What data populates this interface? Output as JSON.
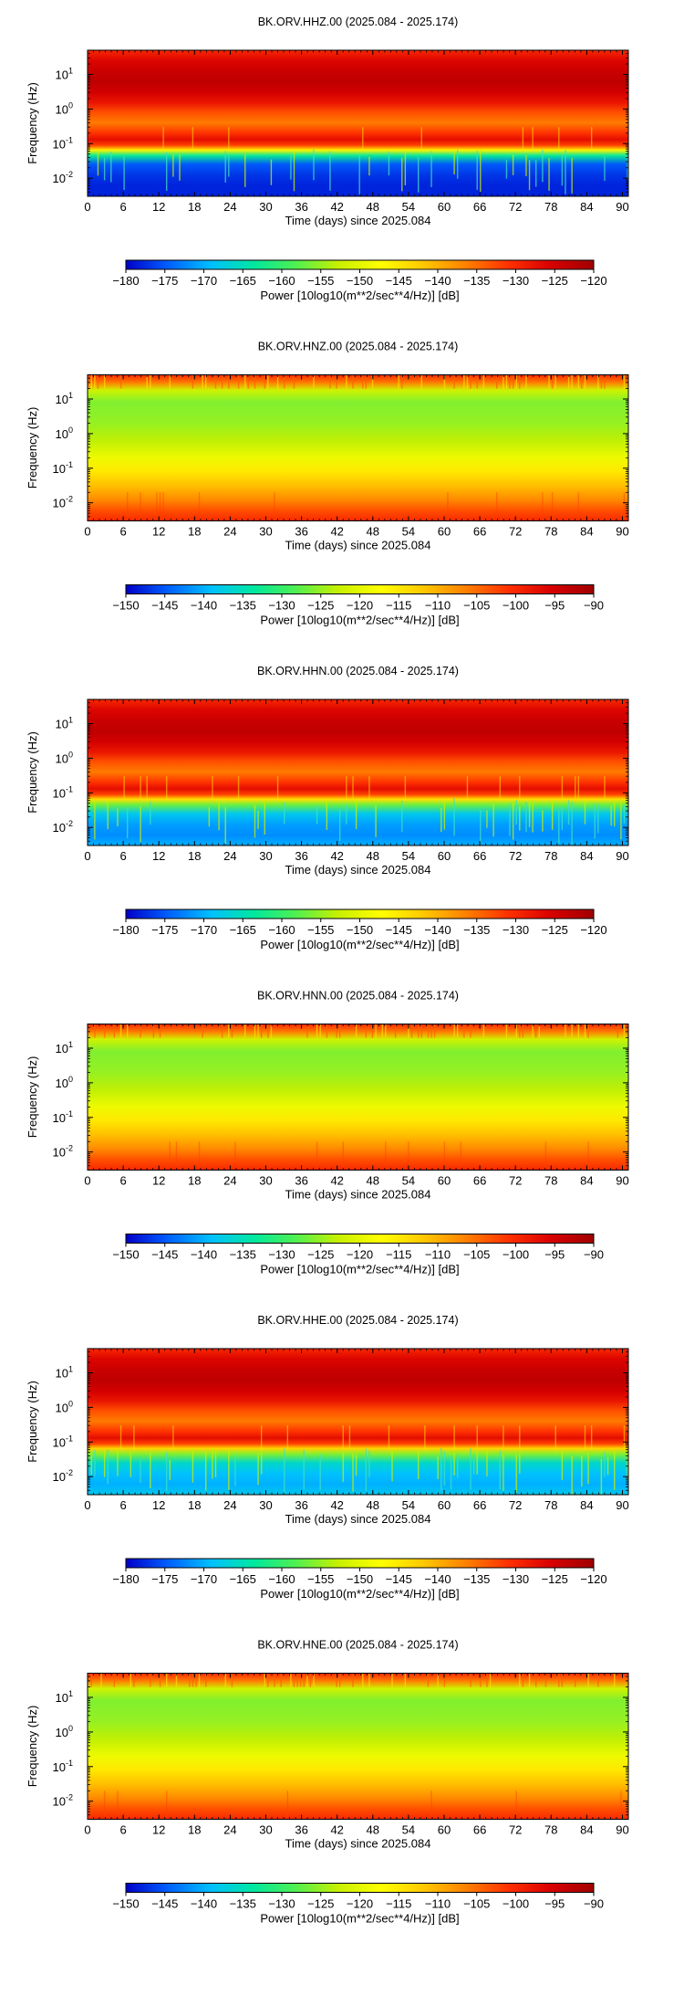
{
  "chart_data": [
    {
      "type": "heatmap",
      "title": "BK.ORV.HHZ.00 (2025.084 - 2025.174)",
      "xlabel": "Time (days) since 2025.084",
      "ylabel": "Frequency (Hz)",
      "x_ticks": [
        "0",
        "6",
        "12",
        "18",
        "24",
        "30",
        "36",
        "42",
        "48",
        "54",
        "60",
        "66",
        "72",
        "78",
        "84",
        "90"
      ],
      "xlim": [
        0,
        91
      ],
      "y_scale": "log",
      "y_ticks": [
        {
          "base": "10",
          "exp": "1"
        },
        {
          "base": "10",
          "exp": "0"
        },
        {
          "base": "10",
          "exp": "-1"
        },
        {
          "base": "10",
          "exp": "-2"
        }
      ],
      "ylim": [
        0.003,
        50
      ],
      "colorbar": {
        "label": "Power [10log10(m**2/sec**4/Hz)] [dB]",
        "range": [
          -180,
          -120
        ],
        "ticks": [
          "−180",
          "−175",
          "−170",
          "−165",
          "−160",
          "−155",
          "−150",
          "−145",
          "−140",
          "−135",
          "−130",
          "−125",
          "−120"
        ]
      },
      "colormap": [
        "#0000c8",
        "#0060ff",
        "#00c0ff",
        "#00e8a0",
        "#50f050",
        "#c8f000",
        "#ffff00",
        "#ffc800",
        "#ff8000",
        "#ff3000",
        "#d80000",
        "#a00000"
      ],
      "bands": [
        {
          "freq": 0.003,
          "value": -178
        },
        {
          "freq": 0.006,
          "value": -178
        },
        {
          "freq": 0.012,
          "value": -177
        },
        {
          "freq": 0.025,
          "value": -175
        },
        {
          "freq": 0.045,
          "value": -163
        },
        {
          "freq": 0.065,
          "value": -146
        },
        {
          "freq": 0.09,
          "value": -132
        },
        {
          "freq": 0.13,
          "value": -127
        },
        {
          "freq": 0.2,
          "value": -131
        },
        {
          "freq": 0.4,
          "value": -136
        },
        {
          "freq": 0.8,
          "value": -133
        },
        {
          "freq": 1.5,
          "value": -128
        },
        {
          "freq": 3,
          "value": -125
        },
        {
          "freq": 6,
          "value": -123
        },
        {
          "freq": 12,
          "value": -124
        },
        {
          "freq": 25,
          "value": -126
        },
        {
          "freq": 50,
          "value": -130
        }
      ]
    },
    {
      "type": "heatmap",
      "title": "BK.ORV.HNZ.00 (2025.084 - 2025.174)",
      "xlabel": "Time (days) since 2025.084",
      "ylabel": "Frequency (Hz)",
      "x_ticks": [
        "0",
        "6",
        "12",
        "18",
        "24",
        "30",
        "36",
        "42",
        "48",
        "54",
        "60",
        "66",
        "72",
        "78",
        "84",
        "90"
      ],
      "xlim": [
        0,
        91
      ],
      "y_scale": "log",
      "y_ticks": [
        {
          "base": "10",
          "exp": "1"
        },
        {
          "base": "10",
          "exp": "0"
        },
        {
          "base": "10",
          "exp": "-1"
        },
        {
          "base": "10",
          "exp": "-2"
        }
      ],
      "ylim": [
        0.003,
        50
      ],
      "colorbar": {
        "label": "Power [10log10(m**2/sec**4/Hz)] [dB]",
        "range": [
          -150,
          -90
        ],
        "ticks": [
          "−150",
          "−145",
          "−140",
          "−135",
          "−130",
          "−125",
          "−120",
          "−115",
          "−110",
          "−105",
          "−100",
          "−95",
          "−90"
        ]
      },
      "colormap": [
        "#0000c8",
        "#0060ff",
        "#00c0ff",
        "#00e8a0",
        "#50f050",
        "#c8f000",
        "#ffff00",
        "#ffc800",
        "#ff8000",
        "#ff3000",
        "#d80000",
        "#a00000"
      ],
      "bands": [
        {
          "freq": 0.003,
          "value": -100
        },
        {
          "freq": 0.006,
          "value": -103
        },
        {
          "freq": 0.012,
          "value": -107
        },
        {
          "freq": 0.03,
          "value": -111
        },
        {
          "freq": 0.08,
          "value": -115
        },
        {
          "freq": 0.2,
          "value": -119
        },
        {
          "freq": 0.6,
          "value": -123
        },
        {
          "freq": 2,
          "value": -125
        },
        {
          "freq": 8,
          "value": -126
        },
        {
          "freq": 18,
          "value": -122
        },
        {
          "freq": 30,
          "value": -106
        },
        {
          "freq": 50,
          "value": -100
        }
      ]
    },
    {
      "type": "heatmap",
      "title": "BK.ORV.HHN.00 (2025.084 - 2025.174)",
      "xlabel": "Time (days) since 2025.084",
      "ylabel": "Frequency (Hz)",
      "x_ticks": [
        "0",
        "6",
        "12",
        "18",
        "24",
        "30",
        "36",
        "42",
        "48",
        "54",
        "60",
        "66",
        "72",
        "78",
        "84",
        "90"
      ],
      "xlim": [
        0,
        91
      ],
      "y_scale": "log",
      "y_ticks": [
        {
          "base": "10",
          "exp": "1"
        },
        {
          "base": "10",
          "exp": "0"
        },
        {
          "base": "10",
          "exp": "-1"
        },
        {
          "base": "10",
          "exp": "-2"
        }
      ],
      "ylim": [
        0.003,
        50
      ],
      "colorbar": {
        "label": "Power [10log10(m**2/sec**4/Hz)] [dB]",
        "range": [
          -180,
          -120
        ],
        "ticks": [
          "−180",
          "−175",
          "−170",
          "−165",
          "−160",
          "−155",
          "−150",
          "−145",
          "−140",
          "−135",
          "−130",
          "−125",
          "−120"
        ]
      },
      "colormap": [
        "#0000c8",
        "#0060ff",
        "#00c0ff",
        "#00e8a0",
        "#50f050",
        "#c8f000",
        "#ffff00",
        "#ffc800",
        "#ff8000",
        "#ff3000",
        "#d80000",
        "#a00000"
      ],
      "bands": [
        {
          "freq": 0.003,
          "value": -170
        },
        {
          "freq": 0.006,
          "value": -172
        },
        {
          "freq": 0.012,
          "value": -171
        },
        {
          "freq": 0.025,
          "value": -168
        },
        {
          "freq": 0.045,
          "value": -157
        },
        {
          "freq": 0.065,
          "value": -144
        },
        {
          "freq": 0.09,
          "value": -132
        },
        {
          "freq": 0.13,
          "value": -127
        },
        {
          "freq": 0.2,
          "value": -131
        },
        {
          "freq": 0.4,
          "value": -136
        },
        {
          "freq": 0.8,
          "value": -133
        },
        {
          "freq": 1.5,
          "value": -128
        },
        {
          "freq": 3,
          "value": -125
        },
        {
          "freq": 6,
          "value": -123
        },
        {
          "freq": 12,
          "value": -124
        },
        {
          "freq": 25,
          "value": -126
        },
        {
          "freq": 50,
          "value": -130
        }
      ]
    },
    {
      "type": "heatmap",
      "title": "BK.ORV.HNN.00 (2025.084 - 2025.174)",
      "xlabel": "Time (days) since 2025.084",
      "ylabel": "Frequency (Hz)",
      "x_ticks": [
        "0",
        "6",
        "12",
        "18",
        "24",
        "30",
        "36",
        "42",
        "48",
        "54",
        "60",
        "66",
        "72",
        "78",
        "84",
        "90"
      ],
      "xlim": [
        0,
        91
      ],
      "y_scale": "log",
      "y_ticks": [
        {
          "base": "10",
          "exp": "1"
        },
        {
          "base": "10",
          "exp": "0"
        },
        {
          "base": "10",
          "exp": "-1"
        },
        {
          "base": "10",
          "exp": "-2"
        }
      ],
      "ylim": [
        0.003,
        50
      ],
      "colorbar": {
        "label": "Power [10log10(m**2/sec**4/Hz)] [dB]",
        "range": [
          -150,
          -90
        ],
        "ticks": [
          "−150",
          "−145",
          "−140",
          "−135",
          "−130",
          "−125",
          "−120",
          "−115",
          "−110",
          "−105",
          "−100",
          "−95",
          "−90"
        ]
      },
      "colormap": [
        "#0000c8",
        "#0060ff",
        "#00c0ff",
        "#00e8a0",
        "#50f050",
        "#c8f000",
        "#ffff00",
        "#ffc800",
        "#ff8000",
        "#ff3000",
        "#d80000",
        "#a00000"
      ],
      "bands": [
        {
          "freq": 0.003,
          "value": -100
        },
        {
          "freq": 0.006,
          "value": -103
        },
        {
          "freq": 0.012,
          "value": -107
        },
        {
          "freq": 0.03,
          "value": -111
        },
        {
          "freq": 0.08,
          "value": -115
        },
        {
          "freq": 0.2,
          "value": -119
        },
        {
          "freq": 0.6,
          "value": -123
        },
        {
          "freq": 2,
          "value": -125
        },
        {
          "freq": 8,
          "value": -126
        },
        {
          "freq": 18,
          "value": -122
        },
        {
          "freq": 30,
          "value": -106
        },
        {
          "freq": 50,
          "value": -100
        }
      ]
    },
    {
      "type": "heatmap",
      "title": "BK.ORV.HHE.00 (2025.084 - 2025.174)",
      "xlabel": "Time (days) since 2025.084",
      "ylabel": "Frequency (Hz)",
      "x_ticks": [
        "0",
        "6",
        "12",
        "18",
        "24",
        "30",
        "36",
        "42",
        "48",
        "54",
        "60",
        "66",
        "72",
        "78",
        "84",
        "90"
      ],
      "xlim": [
        0,
        91
      ],
      "y_scale": "log",
      "y_ticks": [
        {
          "base": "10",
          "exp": "1"
        },
        {
          "base": "10",
          "exp": "0"
        },
        {
          "base": "10",
          "exp": "-1"
        },
        {
          "base": "10",
          "exp": "-2"
        }
      ],
      "ylim": [
        0.003,
        50
      ],
      "colorbar": {
        "label": "Power [10log10(m**2/sec**4/Hz)] [dB]",
        "range": [
          -180,
          -120
        ],
        "ticks": [
          "−180",
          "−175",
          "−170",
          "−165",
          "−160",
          "−155",
          "−150",
          "−145",
          "−140",
          "−135",
          "−130",
          "−125",
          "−120"
        ]
      },
      "colormap": [
        "#0000c8",
        "#0060ff",
        "#00c0ff",
        "#00e8a0",
        "#50f050",
        "#c8f000",
        "#ffff00",
        "#ffc800",
        "#ff8000",
        "#ff3000",
        "#d80000",
        "#a00000"
      ],
      "bands": [
        {
          "freq": 0.003,
          "value": -168
        },
        {
          "freq": 0.006,
          "value": -170
        },
        {
          "freq": 0.012,
          "value": -169
        },
        {
          "freq": 0.025,
          "value": -166
        },
        {
          "freq": 0.045,
          "value": -156
        },
        {
          "freq": 0.065,
          "value": -143
        },
        {
          "freq": 0.09,
          "value": -132
        },
        {
          "freq": 0.13,
          "value": -127
        },
        {
          "freq": 0.2,
          "value": -131
        },
        {
          "freq": 0.4,
          "value": -136
        },
        {
          "freq": 0.8,
          "value": -133
        },
        {
          "freq": 1.5,
          "value": -128
        },
        {
          "freq": 3,
          "value": -125
        },
        {
          "freq": 6,
          "value": -123
        },
        {
          "freq": 12,
          "value": -124
        },
        {
          "freq": 25,
          "value": -126
        },
        {
          "freq": 50,
          "value": -130
        }
      ]
    },
    {
      "type": "heatmap",
      "title": "BK.ORV.HNE.00 (2025.084 - 2025.174)",
      "xlabel": "Time (days) since 2025.084",
      "ylabel": "Frequency (Hz)",
      "x_ticks": [
        "0",
        "6",
        "12",
        "18",
        "24",
        "30",
        "36",
        "42",
        "48",
        "54",
        "60",
        "66",
        "72",
        "78",
        "84",
        "90"
      ],
      "xlim": [
        0,
        91
      ],
      "y_scale": "log",
      "y_ticks": [
        {
          "base": "10",
          "exp": "1"
        },
        {
          "base": "10",
          "exp": "0"
        },
        {
          "base": "10",
          "exp": "-1"
        },
        {
          "base": "10",
          "exp": "-2"
        }
      ],
      "ylim": [
        0.003,
        50
      ],
      "colorbar": {
        "label": "Power [10log10(m**2/sec**4/Hz)] [dB]",
        "range": [
          -150,
          -90
        ],
        "ticks": [
          "−150",
          "−145",
          "−140",
          "−135",
          "−130",
          "−125",
          "−120",
          "−115",
          "−110",
          "−105",
          "−100",
          "−95",
          "−90"
        ]
      },
      "colormap": [
        "#0000c8",
        "#0060ff",
        "#00c0ff",
        "#00e8a0",
        "#50f050",
        "#c8f000",
        "#ffff00",
        "#ffc800",
        "#ff8000",
        "#ff3000",
        "#d80000",
        "#a00000"
      ],
      "bands": [
        {
          "freq": 0.003,
          "value": -100
        },
        {
          "freq": 0.006,
          "value": -103
        },
        {
          "freq": 0.012,
          "value": -107
        },
        {
          "freq": 0.03,
          "value": -111
        },
        {
          "freq": 0.08,
          "value": -115
        },
        {
          "freq": 0.2,
          "value": -119
        },
        {
          "freq": 0.6,
          "value": -123
        },
        {
          "freq": 2,
          "value": -125
        },
        {
          "freq": 8,
          "value": -126
        },
        {
          "freq": 18,
          "value": -122
        },
        {
          "freq": 30,
          "value": -106
        },
        {
          "freq": 50,
          "value": -100
        }
      ]
    }
  ]
}
